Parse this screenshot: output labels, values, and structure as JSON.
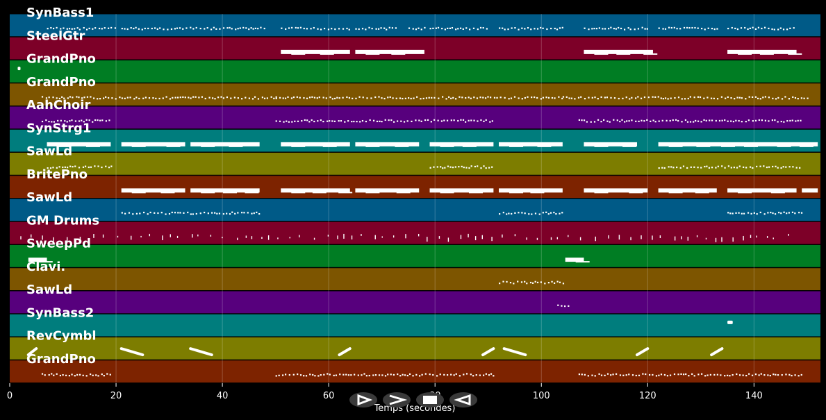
{
  "chart_data": {
    "type": "piano-roll",
    "xlabel": "Temps (secondes)",
    "xlim": [
      0,
      152.5
    ],
    "xticks": [
      0,
      20,
      40,
      60,
      80,
      100,
      120,
      140
    ],
    "grid": true,
    "tracks": [
      {
        "name": "SynBass1",
        "color": "#005a87",
        "style": "dots",
        "segments": [
          [
            7,
            20
          ],
          [
            21,
            48
          ],
          [
            51,
            64
          ],
          [
            65,
            73
          ],
          [
            75,
            78
          ],
          [
            79,
            90
          ],
          [
            92,
            104
          ],
          [
            108,
            120
          ],
          [
            122,
            133
          ],
          [
            135,
            148
          ]
        ]
      },
      {
        "name": "SteelGtr",
        "color": "#7d0028",
        "style": "thick",
        "segments": [
          [
            51,
            64
          ],
          [
            65,
            78
          ],
          [
            108,
            121
          ],
          [
            135,
            148
          ]
        ]
      },
      {
        "name": "GrandPno",
        "color": "#007d23",
        "style": "dot",
        "segments": [
          [
            1.5,
            2
          ]
        ]
      },
      {
        "name": "GrandPno",
        "color": "#7d5500",
        "style": "dots",
        "segments": [
          [
            6,
            50
          ],
          [
            50,
            104
          ],
          [
            104,
            150
          ]
        ]
      },
      {
        "name": "AahChoir",
        "color": "#57007d",
        "style": "dots",
        "segments": [
          [
            6,
            19
          ],
          [
            50,
            91
          ],
          [
            107,
            149
          ]
        ]
      },
      {
        "name": "SynStrg1",
        "color": "#007d7d",
        "style": "thick",
        "segments": [
          [
            7,
            19
          ],
          [
            21,
            33
          ],
          [
            34,
            47
          ],
          [
            51,
            64
          ],
          [
            65,
            77
          ],
          [
            79,
            91
          ],
          [
            92,
            104
          ],
          [
            108,
            118
          ],
          [
            122,
            152
          ]
        ]
      },
      {
        "name": "SawLd",
        "color": "#7d7d00",
        "style": "dots",
        "segments": [
          [
            7,
            19
          ],
          [
            79,
            91
          ],
          [
            122,
            149
          ]
        ]
      },
      {
        "name": "BritePno",
        "color": "#7d2300",
        "style": "thick",
        "segments": [
          [
            21,
            33
          ],
          [
            34,
            47
          ],
          [
            51,
            64
          ],
          [
            65,
            77
          ],
          [
            79,
            91
          ],
          [
            92,
            104
          ],
          [
            108,
            120
          ],
          [
            122,
            133
          ],
          [
            135,
            148
          ],
          [
            149,
            152
          ]
        ]
      },
      {
        "name": "SawLd",
        "color": "#005a87",
        "style": "dots",
        "segments": [
          [
            21,
            47
          ],
          [
            92,
            104
          ],
          [
            135,
            149
          ]
        ]
      },
      {
        "name": "GM Drums",
        "color": "#7d0028",
        "style": "sparse",
        "segments": [
          [
            2,
            148
          ]
        ]
      },
      {
        "name": "SweepPd",
        "color": "#007d23",
        "style": "thick",
        "segments": [
          [
            3.5,
            7
          ],
          [
            104.5,
            108
          ]
        ]
      },
      {
        "name": "Clavi.",
        "color": "#7d5500",
        "style": "dots",
        "segments": [
          [
            92,
            104
          ]
        ]
      },
      {
        "name": "SawLd",
        "color": "#57007d",
        "style": "dots",
        "segments": [
          [
            103,
            105
          ]
        ]
      },
      {
        "name": "SynBass2",
        "color": "#007d7d",
        "style": "dot",
        "segments": [
          [
            135,
            136
          ]
        ]
      },
      {
        "name": "RevCymbl",
        "color": "#7d7d00",
        "style": "diagonal",
        "segments": [
          [
            3.5,
            5
          ],
          [
            21,
            25
          ],
          [
            34,
            38
          ],
          [
            62,
            64
          ],
          [
            89,
            91
          ],
          [
            93,
            97
          ],
          [
            118,
            120
          ],
          [
            132,
            134
          ]
        ]
      },
      {
        "name": "GrandPno",
        "color": "#7d2300",
        "style": "dots",
        "segments": [
          [
            6,
            19
          ],
          [
            50,
            91
          ],
          [
            107,
            149
          ]
        ]
      }
    ]
  },
  "controls": [
    {
      "name": "play-outline-icon"
    },
    {
      "name": "forward-icon"
    },
    {
      "name": "stop-icon"
    },
    {
      "name": "back-icon"
    }
  ]
}
